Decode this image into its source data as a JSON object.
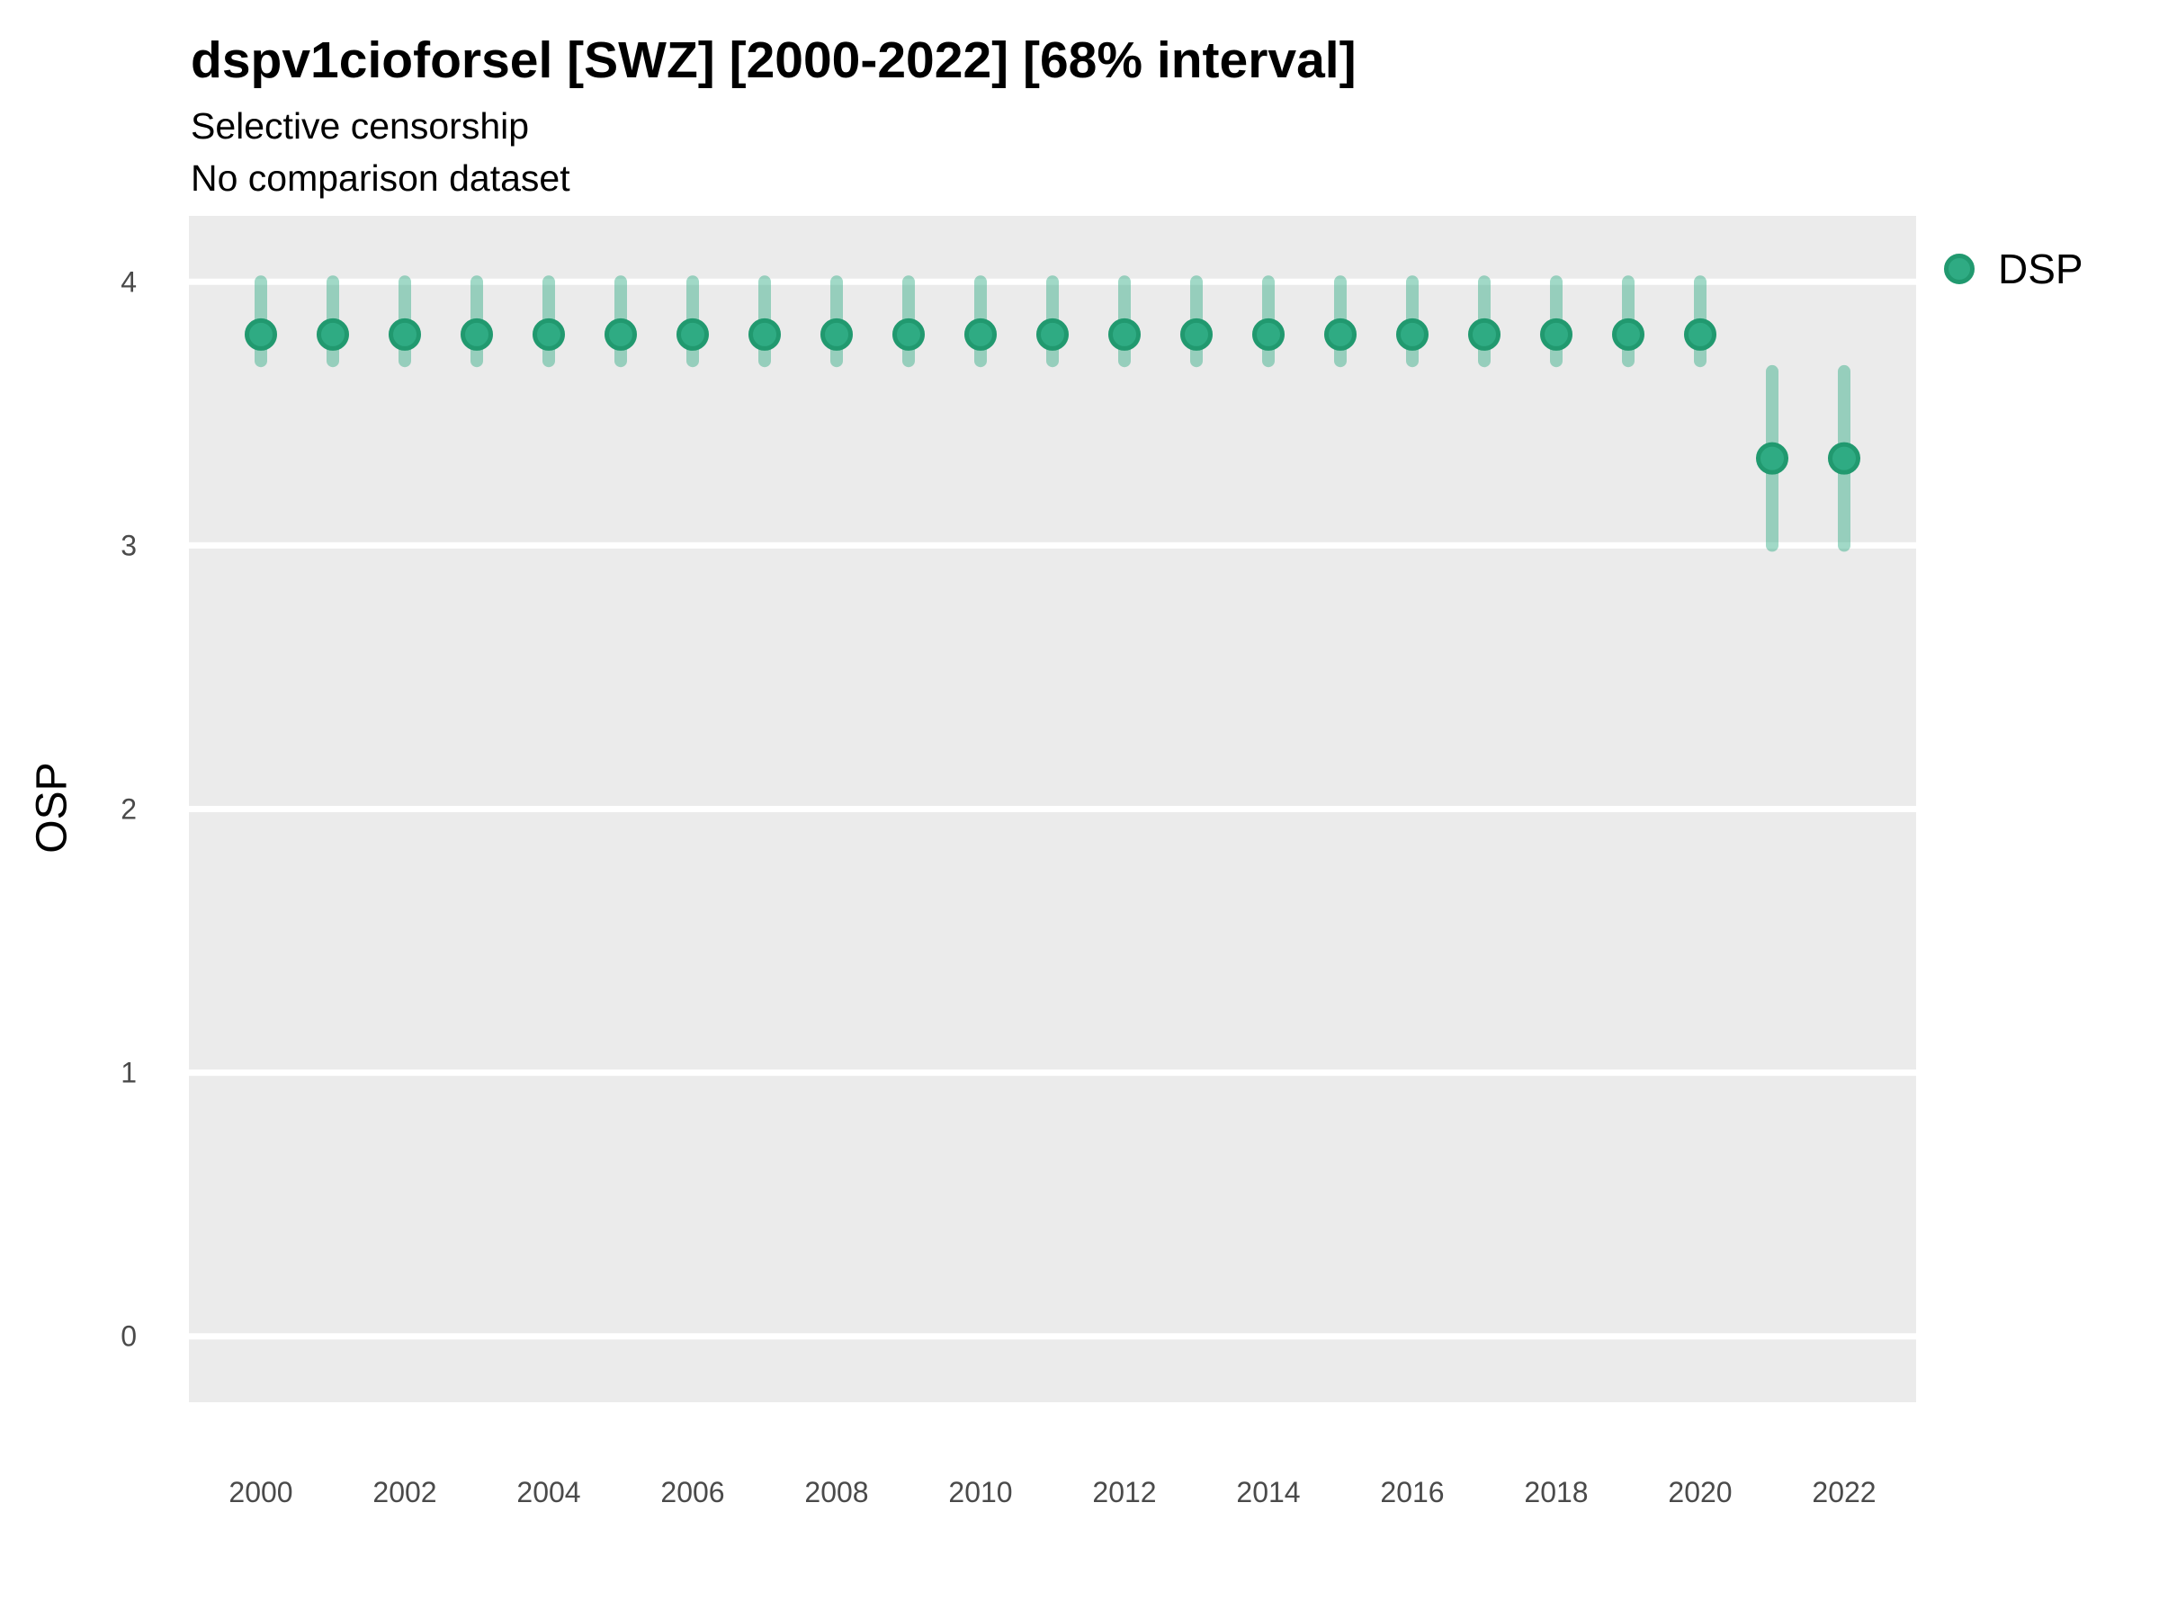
{
  "chart_data": {
    "type": "scatter",
    "variant": "pointrange",
    "title": "dspv1cioforsel [SWZ] [2000-2022] [68% interval]",
    "subtitle": "Selective censorship",
    "subtitle2": "No comparison dataset",
    "xlabel": "",
    "ylabel": "OSP",
    "years": [
      2000,
      2001,
      2002,
      2003,
      2004,
      2005,
      2006,
      2007,
      2008,
      2009,
      2010,
      2011,
      2012,
      2013,
      2014,
      2015,
      2016,
      2017,
      2018,
      2019,
      2020,
      2021,
      2022
    ],
    "series": [
      {
        "name": "DSP",
        "estimate": [
          3.8,
          3.8,
          3.8,
          3.8,
          3.8,
          3.8,
          3.8,
          3.8,
          3.8,
          3.8,
          3.8,
          3.8,
          3.8,
          3.8,
          3.8,
          3.8,
          3.8,
          3.8,
          3.8,
          3.8,
          3.8,
          3.33,
          3.33
        ],
        "lower": [
          3.7,
          3.7,
          3.7,
          3.7,
          3.7,
          3.7,
          3.7,
          3.7,
          3.7,
          3.7,
          3.7,
          3.7,
          3.7,
          3.7,
          3.7,
          3.7,
          3.7,
          3.7,
          3.7,
          3.7,
          3.7,
          3.0,
          3.0
        ],
        "upper": [
          4.0,
          4.0,
          4.0,
          4.0,
          4.0,
          4.0,
          4.0,
          4.0,
          4.0,
          4.0,
          4.0,
          4.0,
          4.0,
          4.0,
          4.0,
          4.0,
          4.0,
          4.0,
          4.0,
          4.0,
          4.0,
          3.66,
          3.66
        ]
      }
    ],
    "ylim": [
      -0.25,
      4.25
    ],
    "yticks": [
      0,
      1,
      2,
      3,
      4
    ],
    "xticks": [
      2000,
      2002,
      2004,
      2006,
      2008,
      2010,
      2012,
      2014,
      2016,
      2018,
      2020,
      2022
    ],
    "grid": "major-horizontal",
    "legend_position": "top-right"
  },
  "colors": {
    "point_fill": "#2FAB83",
    "point_border": "#21996F",
    "interval_bar": "rgba(47,171,131,0.45)",
    "panel_background": "#EBEBEB",
    "gridline": "#FFFFFF",
    "tick_label": "#4A4A4A",
    "text": "#000000"
  }
}
